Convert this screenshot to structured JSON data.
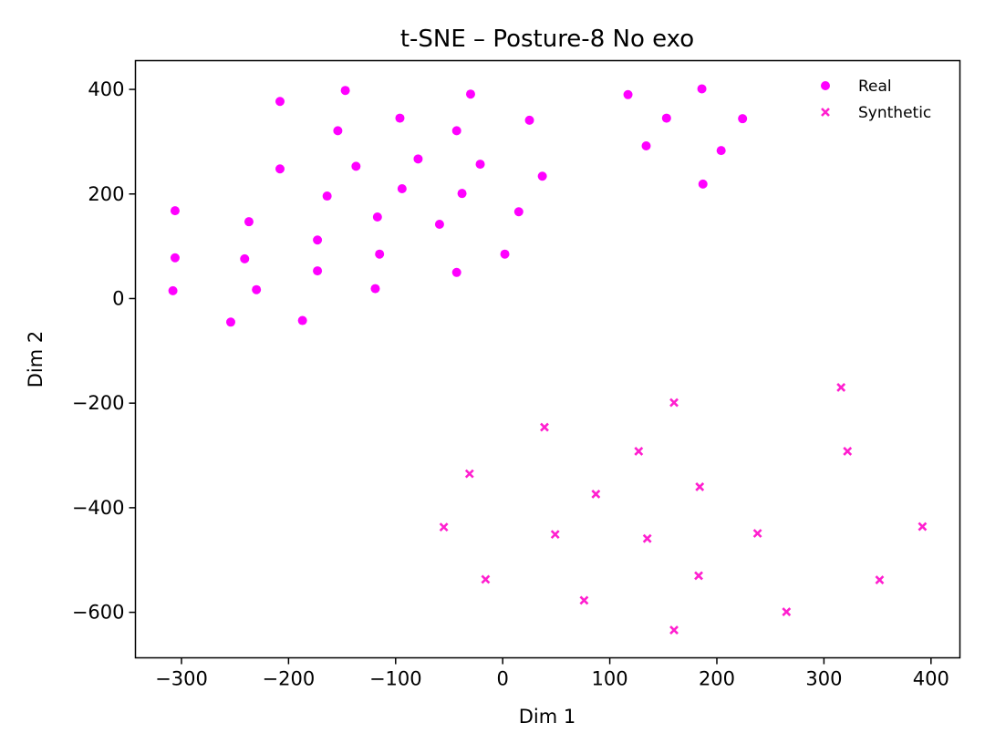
{
  "chart_data": {
    "type": "scatter",
    "title": "t-SNE – Posture-8 No exo",
    "xlabel": "Dim 1",
    "ylabel": "Dim 2",
    "xlim": [
      -343,
      427
    ],
    "ylim": [
      -687,
      455
    ],
    "xticks": [
      -300,
      -200,
      -100,
      0,
      100,
      200,
      300,
      400
    ],
    "yticks": [
      400,
      200,
      0,
      -200,
      -400,
      -600
    ],
    "xtick_labels": [
      "−300",
      "−200",
      "−100",
      "0",
      "100",
      "200",
      "300",
      "400"
    ],
    "ytick_labels": [
      "400",
      "200",
      "0",
      "−200",
      "−400",
      "−600"
    ],
    "grid": false,
    "legend_position": "top-right",
    "series": [
      {
        "name": "Real",
        "marker": "circle",
        "color": "#ff00ff",
        "points": [
          [
            -306,
            168
          ],
          [
            -306,
            78
          ],
          [
            -308,
            15
          ],
          [
            -237,
            147
          ],
          [
            -241,
            76
          ],
          [
            -230,
            17
          ],
          [
            -254,
            -45
          ],
          [
            -208,
            377
          ],
          [
            -208,
            248
          ],
          [
            -173,
            112
          ],
          [
            -173,
            53
          ],
          [
            -187,
            -42
          ],
          [
            -147,
            398
          ],
          [
            -154,
            321
          ],
          [
            -137,
            253
          ],
          [
            -164,
            196
          ],
          [
            -96,
            345
          ],
          [
            -94,
            210
          ],
          [
            -117,
            156
          ],
          [
            -115,
            85
          ],
          [
            -119,
            19
          ],
          [
            -79,
            267
          ],
          [
            -59,
            142
          ],
          [
            -43,
            321
          ],
          [
            -38,
            201
          ],
          [
            -43,
            50
          ],
          [
            -30,
            391
          ],
          [
            -21,
            257
          ],
          [
            2,
            85
          ],
          [
            15,
            166
          ],
          [
            25,
            341
          ],
          [
            37,
            234
          ],
          [
            117,
            390
          ],
          [
            134,
            292
          ],
          [
            153,
            345
          ],
          [
            186,
            401
          ],
          [
            187,
            219
          ],
          [
            204,
            283
          ],
          [
            224,
            344
          ]
        ]
      },
      {
        "name": "Synthetic",
        "marker": "x",
        "color": "#ff1fcf",
        "points": [
          [
            39,
            -246
          ],
          [
            -31,
            -335
          ],
          [
            -55,
            -437
          ],
          [
            49,
            -451
          ],
          [
            -16,
            -537
          ],
          [
            87,
            -374
          ],
          [
            76,
            -577
          ],
          [
            127,
            -292
          ],
          [
            160,
            -199
          ],
          [
            135,
            -459
          ],
          [
            184,
            -360
          ],
          [
            183,
            -530
          ],
          [
            160,
            -634
          ],
          [
            238,
            -449
          ],
          [
            265,
            -599
          ],
          [
            316,
            -170
          ],
          [
            322,
            -292
          ],
          [
            352,
            -538
          ],
          [
            392,
            -436
          ]
        ]
      }
    ]
  }
}
